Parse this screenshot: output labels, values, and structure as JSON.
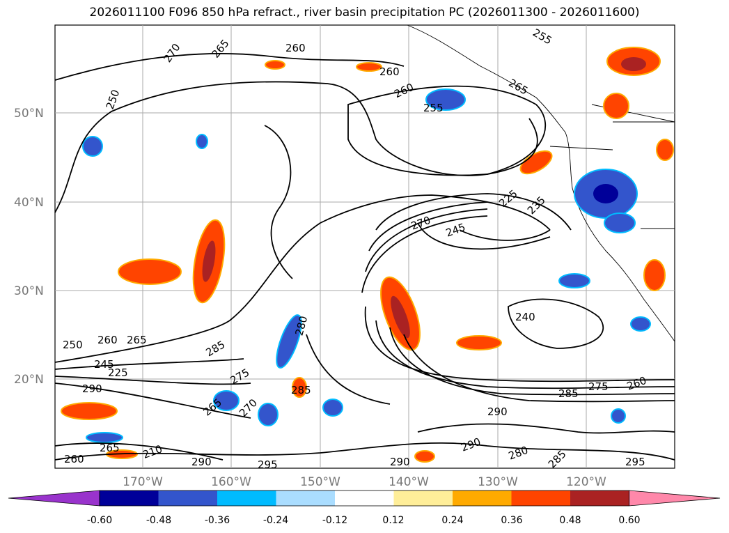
{
  "title": "2026011100 F096 850 hPa refract., river basin precipitation PC (2026011300 - 2026011600)",
  "map": {
    "lat_labels": [
      "50°N",
      "40°N",
      "30°N",
      "20°N"
    ],
    "lon_labels": [
      "170°W",
      "160°W",
      "150°W",
      "140°W",
      "130°W",
      "120°W"
    ],
    "contour_labels": [
      "270",
      "265",
      "260",
      "260",
      "260",
      "265",
      "255",
      "250",
      "255",
      "225",
      "235",
      "245",
      "270",
      "240",
      "250",
      "260",
      "265",
      "245",
      "225",
      "290",
      "285",
      "280",
      "275",
      "270",
      "265",
      "290",
      "260",
      "265",
      "210",
      "290",
      "295",
      "290",
      "285",
      "280",
      "290",
      "285",
      "295",
      "275",
      "260",
      "285"
    ]
  },
  "colorbar": {
    "ticks": [
      "-0.60",
      "-0.48",
      "-0.36",
      "-0.24",
      "-0.12",
      "0.12",
      "0.24",
      "0.36",
      "0.48",
      "0.60"
    ],
    "colors": [
      "#9933cc",
      "#000099",
      "#3355cc",
      "#00bbff",
      "#aaddff",
      "#ffffff",
      "#ffee99",
      "#ffaa00",
      "#ff4400",
      "#aa2222",
      "#ff88aa"
    ]
  }
}
